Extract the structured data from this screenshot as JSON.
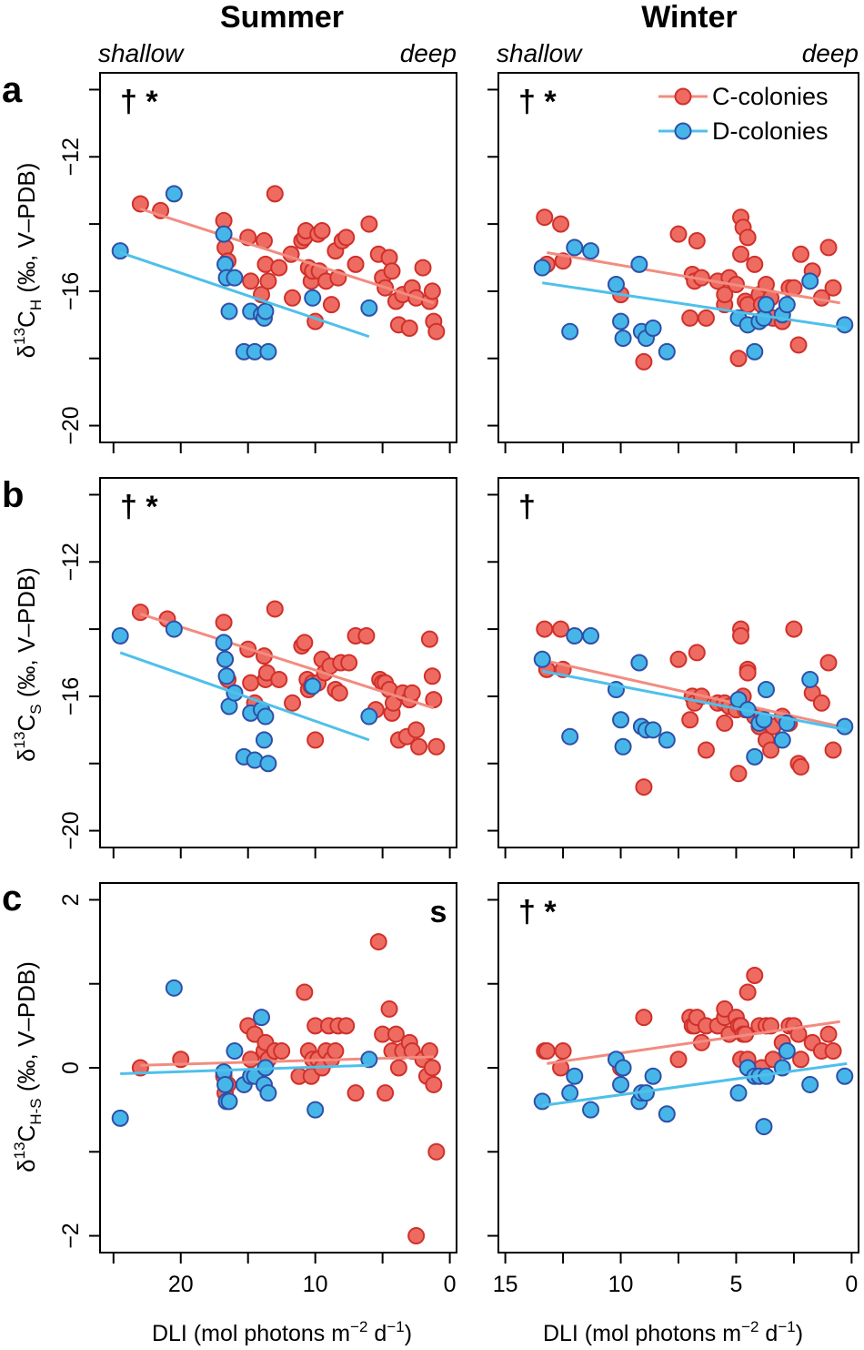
{
  "columns": {
    "summer": "Summer",
    "winter": "Winter"
  },
  "depth_labels": {
    "shallow": "shallow",
    "deep": "deep"
  },
  "panel_letters": [
    "a",
    "b",
    "c"
  ],
  "y_labels": [
    {
      "prefix": "δ",
      "sup": "13",
      "main": "C",
      "sub": "H",
      "suffix": " (‰, V–PDB)"
    },
    {
      "prefix": "δ",
      "sup": "13",
      "main": "C",
      "sub": "S",
      "suffix": " (‰, V–PDB)"
    },
    {
      "prefix": "δ",
      "sup": "13",
      "main": "C",
      "sub": "H-S",
      "suffix": " (‰, V–PDB)"
    }
  ],
  "x_label": {
    "text": "DLI (mol photons m",
    "sup1": "−2",
    "mid": " d",
    "sup2": "−1",
    "end": ")"
  },
  "legend": {
    "c": "C-colonies",
    "d": "D-colonies"
  },
  "colors": {
    "c_fill": "#EE6B62",
    "c_stroke": "#D0302A",
    "c_line": "#F28C80",
    "d_fill": "#46B6E8",
    "d_stroke": "#2F4FA8",
    "d_line": "#4FC0EA"
  },
  "chart_data": [
    {
      "id": "a-summer",
      "type": "scatter",
      "row": 0,
      "col": 0,
      "sig": "† *",
      "xlim": [
        26,
        -0.5
      ],
      "ylim": [
        -20.5,
        -9.5
      ],
      "xticks": [
        20,
        10,
        0
      ],
      "yticks": [
        -20,
        -16,
        -12
      ],
      "series": [
        {
          "name": "C-colonies",
          "x": [
            23,
            21.5,
            16.8,
            16.7,
            16.5,
            15,
            14.8,
            14,
            13.8,
            13.7,
            13.5,
            13,
            12.7,
            11.8,
            11.7,
            11,
            10.8,
            10.7,
            10.5,
            10.3,
            10.2,
            10,
            9.8,
            9.7,
            9.5,
            9.2,
            8.8,
            8.5,
            8.3,
            8,
            7.7,
            7,
            6,
            5.3,
            5,
            4.8,
            4.5,
            4.3,
            4,
            3.8,
            3.5,
            3,
            2.8,
            2.5,
            2,
            1.5,
            1.3,
            1.2,
            1
          ],
          "y": [
            -13.4,
            -13.6,
            -13.9,
            -14.7,
            -15.1,
            -14.4,
            -15.7,
            -16.1,
            -14.5,
            -15.2,
            -15.7,
            -13.1,
            -15.3,
            -14.9,
            -16.2,
            -14.5,
            -14.4,
            -14.2,
            -15.3,
            -15.7,
            -15.4,
            -16.9,
            -14.3,
            -15.4,
            -14.2,
            -15.7,
            -16.4,
            -14.8,
            -15.6,
            -14.5,
            -14.4,
            -15.2,
            -14.0,
            -14.9,
            -15.6,
            -15.9,
            -15.0,
            -15.4,
            -16.3,
            -17.0,
            -16.1,
            -17.1,
            -15.9,
            -16.2,
            -15.3,
            -16.3,
            -16.0,
            -16.9,
            -17.2
          ],
          "fit": [
            [
              23,
              -13.55
            ],
            [
              1.2,
              -16.35
            ]
          ]
        },
        {
          "name": "D-colonies",
          "x": [
            24.5,
            20.5,
            16.8,
            16.7,
            16.6,
            16.4,
            16,
            15.3,
            14.8,
            14.5,
            14,
            13.8,
            13.7,
            13.5,
            10.2,
            6
          ],
          "y": [
            -14.8,
            -13.1,
            -14.3,
            -15.2,
            -15.6,
            -16.6,
            -15.6,
            -17.8,
            -16.6,
            -17.8,
            -16.7,
            -16.8,
            -16.6,
            -17.8,
            -16.2,
            -16.5
          ],
          "fit": [
            [
              24.5,
              -14.85
            ],
            [
              6,
              -17.35
            ]
          ]
        }
      ]
    },
    {
      "id": "a-winter",
      "type": "scatter",
      "row": 0,
      "col": 1,
      "sig": "† *",
      "xlim": [
        15.3,
        -0.3
      ],
      "ylim": [
        -20.5,
        -9.5
      ],
      "xticks": [
        15,
        10,
        5,
        0
      ],
      "yticks": [
        -20,
        -16,
        -12
      ],
      "series": [
        {
          "name": "C-colonies",
          "x": [
            13.3,
            13.2,
            12.6,
            12.5,
            10,
            9,
            7.5,
            7,
            6.9,
            6.8,
            6.7,
            6.5,
            6.3,
            5.8,
            5.5,
            5.5,
            5.3,
            5,
            4.9,
            4.8,
            4.8,
            4.7,
            4.6,
            4.5,
            4.5,
            4.2,
            4,
            3.9,
            3.7,
            3.5,
            3.4,
            3,
            2.7,
            2.5,
            2.3,
            2.2,
            1.7,
            1.3,
            1,
            0.8
          ],
          "y": [
            -13.8,
            -15.2,
            -14.0,
            -15.1,
            -16.1,
            -18.1,
            -14.3,
            -16.8,
            -15.5,
            -15.7,
            -14.5,
            -15.6,
            -16.8,
            -15.7,
            -16.4,
            -16.1,
            -15.6,
            -15.8,
            -18.0,
            -13.8,
            -14.9,
            -14.1,
            -16.3,
            -14.4,
            -16.4,
            -15.2,
            -16.1,
            -16.4,
            -15.8,
            -16.2,
            -16.8,
            -16.9,
            -15.9,
            -15.9,
            -17.6,
            -14.9,
            -15.4,
            -16.2,
            -14.7,
            -15.9
          ],
          "fit": [
            [
              13.2,
              -14.85
            ],
            [
              0.5,
              -16.35
            ]
          ]
        },
        {
          "name": "D-colonies",
          "x": [
            13.4,
            12.2,
            12,
            11.3,
            10.2,
            10,
            9.9,
            9.2,
            9.1,
            8.9,
            8.6,
            8,
            4.9,
            4.5,
            4.2,
            4,
            3.8,
            3.7,
            3,
            2.8,
            1.8,
            0.3
          ],
          "y": [
            -15.3,
            -17.2,
            -14.7,
            -14.8,
            -15.8,
            -16.9,
            -17.4,
            -15.2,
            -17.2,
            -17.4,
            -17.1,
            -17.8,
            -16.8,
            -17.0,
            -17.8,
            -16.9,
            -16.8,
            -16.4,
            -16.7,
            -16.4,
            -15.7,
            -17.0
          ],
          "fit": [
            [
              13.4,
              -15.75
            ],
            [
              0.2,
              -17.1
            ]
          ]
        }
      ]
    },
    {
      "id": "b-summer",
      "type": "scatter",
      "row": 1,
      "col": 0,
      "sig": "† *",
      "xlim": [
        26,
        -0.5
      ],
      "ylim": [
        -20.5,
        -9.5
      ],
      "xticks": [
        20,
        10,
        0
      ],
      "yticks": [
        -20,
        -16,
        -12
      ],
      "series": [
        {
          "name": "C-colonies",
          "x": [
            23,
            21,
            16.8,
            16.7,
            16.5,
            15,
            14.8,
            14.5,
            13.8,
            13.7,
            13.6,
            13,
            12.7,
            11.7,
            11,
            10.8,
            10.6,
            10.5,
            10.3,
            10.2,
            10,
            9.8,
            9.5,
            9.3,
            8.9,
            8.5,
            8.2,
            8.1,
            7.5,
            7,
            6.2,
            5.5,
            5.2,
            5,
            4.8,
            4.5,
            4.3,
            4.2,
            3.8,
            3.5,
            3.2,
            3,
            2.8,
            2.5,
            2.3,
            1.5,
            1.3,
            1.2,
            1
          ],
          "y": [
            -13.5,
            -13.7,
            -13.8,
            -14.9,
            -15.5,
            -14.6,
            -15.6,
            -16.2,
            -14.8,
            -15.5,
            -15.3,
            -13.4,
            -15.5,
            -16.2,
            -14.5,
            -14.4,
            -15.5,
            -15.8,
            -15.7,
            -15.6,
            -17.3,
            -15.6,
            -14.9,
            -15.3,
            -15.1,
            -15.8,
            -15.9,
            -15.0,
            -15.0,
            -14.2,
            -14.2,
            -16.4,
            -15.5,
            -15.6,
            -15.6,
            -15.8,
            -16.5,
            -16.2,
            -17.3,
            -15.9,
            -17.2,
            -16.1,
            -15.9,
            -17.0,
            -17.5,
            -14.3,
            -15.4,
            -16.1,
            -17.5
          ],
          "fit": [
            [
              23,
              -13.55
            ],
            [
              1.2,
              -16.35
            ]
          ]
        },
        {
          "name": "D-colonies",
          "x": [
            24.5,
            20.5,
            16.8,
            16.7,
            16.6,
            16.4,
            16,
            15.3,
            14.8,
            14.5,
            14,
            13.8,
            13.7,
            13.5,
            10.2,
            6
          ],
          "y": [
            -14.2,
            -14.0,
            -14.4,
            -14.9,
            -15.4,
            -16.3,
            -15.9,
            -17.8,
            -16.5,
            -17.9,
            -16.4,
            -17.3,
            -16.6,
            -18.0,
            -15.7,
            -16.6
          ],
          "fit": [
            [
              24.5,
              -14.7
            ],
            [
              6,
              -17.3
            ]
          ]
        }
      ]
    },
    {
      "id": "b-winter",
      "type": "scatter",
      "row": 1,
      "col": 1,
      "sig": "†",
      "xlim": [
        15.3,
        -0.3
      ],
      "ylim": [
        -20.5,
        -9.5
      ],
      "xticks": [
        15,
        10,
        5,
        0
      ],
      "yticks": [
        -20,
        -16,
        -12
      ],
      "series": [
        {
          "name": "C-colonies",
          "x": [
            13.3,
            13.2,
            12.6,
            12.5,
            9,
            7.5,
            7,
            6.9,
            6.8,
            6.7,
            6.5,
            6.3,
            5.8,
            5.5,
            5.5,
            5.3,
            5,
            4.9,
            4.8,
            4.8,
            4.7,
            4.6,
            4.5,
            4.5,
            4.2,
            4,
            3.9,
            3.7,
            3.5,
            3.4,
            3,
            2.7,
            2.5,
            2.3,
            2.2,
            1.7,
            1.3,
            1,
            0.8
          ],
          "y": [
            -14.0,
            -15.2,
            -14.0,
            -15.2,
            -18.7,
            -14.9,
            -16.7,
            -16.0,
            -16.2,
            -14.7,
            -16.0,
            -17.6,
            -16.2,
            -16.8,
            -16.2,
            -16.3,
            -16.4,
            -18.3,
            -14.0,
            -14.2,
            -16.0,
            -16.4,
            -15.2,
            -15.3,
            -16.6,
            -16.9,
            -16.6,
            -17.3,
            -17.6,
            -16.9,
            -16.6,
            -16.8,
            -14.0,
            -18.0,
            -18.1,
            -15.9,
            -16.2,
            -15.0,
            -17.6
          ],
          "fit": [
            [
              13.2,
              -14.95
            ],
            [
              0.5,
              -16.9
            ]
          ]
        },
        {
          "name": "D-colonies",
          "x": [
            13.4,
            12.2,
            12,
            11.3,
            10.2,
            10,
            9.9,
            9.2,
            9.1,
            8.9,
            8.6,
            8,
            4.9,
            4.5,
            4.2,
            4,
            3.8,
            3.7,
            3,
            2.8,
            1.8,
            0.3
          ],
          "y": [
            -14.9,
            -17.2,
            -14.2,
            -14.2,
            -15.8,
            -16.7,
            -17.5,
            -15.0,
            -16.9,
            -17.0,
            -17.0,
            -17.3,
            -16.1,
            -16.4,
            -17.8,
            -16.8,
            -16.7,
            -15.8,
            -17.3,
            -16.8,
            -15.5,
            -16.9
          ],
          "fit": [
            [
              13.4,
              -15.25
            ],
            [
              0.2,
              -17.0
            ]
          ]
        }
      ]
    },
    {
      "id": "c-summer",
      "type": "scatter",
      "row": 2,
      "col": 0,
      "sig": "s",
      "xlim": [
        26,
        -0.5
      ],
      "ylim": [
        -2.2,
        2.2
      ],
      "xticks": [
        20,
        10,
        0
      ],
      "yticks": [
        -2,
        0,
        2
      ],
      "series": [
        {
          "name": "C-colonies",
          "x": [
            23,
            20,
            16.8,
            16.7,
            16.5,
            15,
            14.8,
            14.5,
            13.8,
            13.7,
            13.5,
            13,
            12.5,
            11.2,
            10.8,
            10.5,
            10.3,
            10.2,
            10,
            9.8,
            9.5,
            9.2,
            9,
            8.8,
            8.5,
            8.3,
            7.7,
            7,
            5.3,
            5,
            4.8,
            4.5,
            4.3,
            4,
            3.8,
            3.5,
            3,
            2.8,
            2.5,
            2,
            1.7,
            1.5,
            1.3,
            1.2,
            1
          ],
          "y": [
            0.0,
            0.1,
            -0.1,
            -0.3,
            -0.2,
            0.5,
            0.1,
            0.4,
            0.2,
            0.3,
            0.1,
            0.2,
            0.2,
            -0.1,
            0.9,
            0.2,
            -0.1,
            0.1,
            0.5,
            0.1,
            0.0,
            0.2,
            0.5,
            0.1,
            0.2,
            0.5,
            0.5,
            -0.3,
            1.5,
            0.4,
            -0.3,
            0.7,
            0.2,
            0.4,
            0.0,
            0.2,
            0.3,
            0.2,
            -2.0,
            0.1,
            -0.1,
            0.2,
            0.0,
            -0.2,
            -1.0
          ],
          "fit": [
            [
              23,
              0.03
            ],
            [
              1.2,
              0.13
            ]
          ]
        },
        {
          "name": "D-colonies",
          "x": [
            24.5,
            20.5,
            16.8,
            16.7,
            16.6,
            16.4,
            16,
            15.3,
            14.8,
            14.5,
            14,
            13.8,
            13.7,
            13.5,
            10,
            6
          ],
          "y": [
            -0.6,
            0.95,
            -0.05,
            -0.2,
            -0.4,
            -0.4,
            0.2,
            -0.2,
            -0.1,
            -0.1,
            0.6,
            -0.2,
            0.0,
            -0.3,
            -0.5,
            0.1
          ],
          "fit": [
            [
              24.5,
              -0.07
            ],
            [
              6,
              0.03
            ]
          ]
        }
      ]
    },
    {
      "id": "c-winter",
      "type": "scatter",
      "row": 2,
      "col": 1,
      "sig": "† *",
      "xlim": [
        15.3,
        -0.3
      ],
      "ylim": [
        -2.2,
        2.2
      ],
      "xticks": [
        15,
        10,
        5,
        0
      ],
      "yticks": [
        -2,
        0,
        2
      ],
      "series": [
        {
          "name": "C-colonies",
          "x": [
            13.3,
            13.2,
            12.6,
            12.5,
            10,
            9,
            7.5,
            7,
            6.9,
            6.8,
            6.7,
            6.5,
            6.3,
            5.8,
            5.5,
            5.5,
            5.3,
            5,
            4.9,
            4.8,
            4.8,
            4.7,
            4.6,
            4.5,
            4.5,
            4.2,
            4,
            3.9,
            3.7,
            3.5,
            3.4,
            3,
            2.7,
            2.5,
            2.3,
            2.2,
            1.7,
            1.3,
            1,
            0.8
          ],
          "y": [
            0.2,
            0.2,
            0.0,
            0.2,
            0.0,
            0.6,
            0.1,
            0.6,
            0.5,
            0.5,
            0.6,
            0.3,
            0.5,
            0.5,
            0.6,
            0.7,
            0.4,
            0.6,
            0.5,
            0.5,
            0.1,
            0.4,
            0.4,
            0.9,
            0.1,
            1.1,
            0.5,
            0.0,
            0.5,
            0.5,
            0.1,
            0.3,
            0.5,
            0.5,
            0.4,
            0.1,
            0.3,
            0.2,
            0.4,
            0.2
          ],
          "fit": [
            [
              13.2,
              0.05
            ],
            [
              0.5,
              0.55
            ]
          ]
        },
        {
          "name": "D-colonies",
          "x": [
            13.4,
            12.2,
            12,
            11.3,
            10.2,
            10,
            9.9,
            9.2,
            9.1,
            8.9,
            8.6,
            8,
            4.9,
            4.5,
            4.2,
            4,
            3.8,
            3.7,
            3,
            2.8,
            1.8,
            0.3
          ],
          "y": [
            -0.4,
            -0.3,
            -0.1,
            -0.5,
            0.1,
            -0.2,
            0.0,
            -0.4,
            -0.3,
            -0.3,
            -0.1,
            -0.55,
            -0.3,
            0.0,
            -0.1,
            -0.1,
            -0.7,
            -0.1,
            0.0,
            0.2,
            -0.2,
            -0.1
          ],
          "fit": [
            [
              13.4,
              -0.45
            ],
            [
              0.2,
              0.05
            ]
          ]
        }
      ]
    }
  ]
}
